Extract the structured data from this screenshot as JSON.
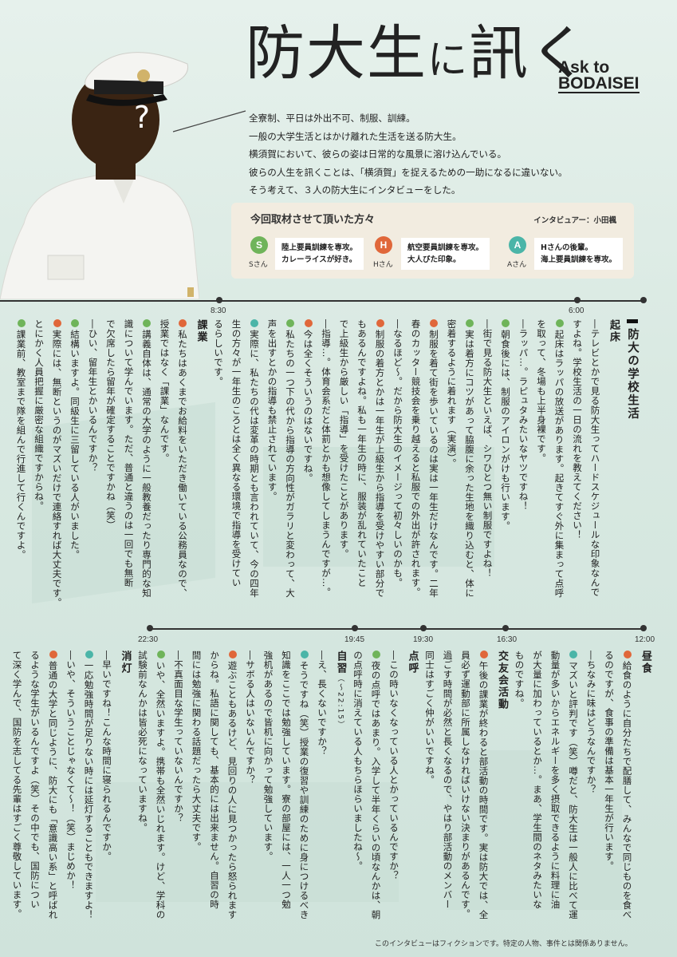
{
  "title": {
    "main1": "防大生",
    "small": "に",
    "main2": "訊く"
  },
  "subtitle": {
    "line1": "Ask to",
    "line2": "BODAISEI"
  },
  "figure_mark": "?",
  "intro": [
    "全寮制、平日は外出不可、制服、訓練。",
    "一般の大学生活とはかけ離れた生活を送る防大生。",
    "横須賀において、彼らの姿は日常的な風景に溶け込んでいる。",
    "彼らの人生を訊くことは、「横須賀」を捉えるための一助になるに違いない。",
    "そう考えて、３人の防大生にインタビューをした。"
  ],
  "interviewees": {
    "title": "今回取材させて頂いた方々",
    "interviewer": "インタビュアー：小田楓",
    "people": [
      {
        "letter": "S",
        "name": "Sさん",
        "desc1": "陸上要員訓練を専攻。",
        "desc2": "カレーライスが好き。",
        "color": "#6fb45a"
      },
      {
        "letter": "H",
        "name": "Hさん",
        "desc1": "航空要員訓練を専攻。",
        "desc2": "大人びた印象。",
        "color": "#e0673a"
      },
      {
        "letter": "A",
        "name": "Aさん",
        "desc1": "Hさんの後輩。",
        "desc2": "海上要員訓練を専攻。",
        "color": "#4bb5a8"
      }
    ]
  },
  "section_heading": "防大の学校生活",
  "timeline_top": {
    "times": [
      "6:00",
      "8:30"
    ]
  },
  "timeline_bottom": {
    "times": [
      "12:00",
      "16:30",
      "19:30",
      "19:45",
      "22:30"
    ]
  },
  "top_text": [
    {
      "type": "sec",
      "text": "起床"
    },
    {
      "text": "―テレビとかで見る防大生ってハードスケジュールな印象なんで"
    },
    {
      "text": "すよね。学校生活の一日の流れを教えてください！"
    },
    {
      "mk": "S",
      "text": "起床はラッパの放送があります。起きてすぐ外に集まって点呼"
    },
    {
      "text": "を取って、冬場も上半身裸です。"
    },
    {
      "text": "―ラッパ…。ラピュタみたいなヤツですね！"
    },
    {
      "mk": "S",
      "text": "朝食後には、制服のアイロンがけも行います。"
    },
    {
      "text": "―街で見る防大生といえば、シワひとつ無い制服ですよね！"
    },
    {
      "mk": "S",
      "text": "実は着方にコツがあって脇腹に余った生地を織り込むと、体に"
    },
    {
      "text": "密着するように着れます（実演）。"
    },
    {
      "mk": "H",
      "text": "制服を着て街を歩いているのは実は一年生だけなんです。二年"
    },
    {
      "text": "春のカッター競技会を乗り越えると私服での外出が許されます。"
    },
    {
      "text": "―なるほど〜。だから防大生のイメージって初々しいのかも。"
    },
    {
      "mk": "H",
      "text": "制服の着方とかは一年生が上級生から指導を受けやすい部分で"
    },
    {
      "text": "もあるんですよね。私も一年生の時に、服装が乱れていたこと"
    },
    {
      "text": "で上級生から厳しい「指導」を受けたことがあります。"
    },
    {
      "text": "―指導…。体育会系だと体罰とかも想像してしまうんですが…。"
    },
    {
      "mk": "H",
      "text": "今は全くそういうのはないですね。"
    },
    {
      "mk": "S",
      "text": "私たちの一つ下の代から指導の方向性がガラリと変わって、大"
    },
    {
      "text": "声を出すとかの指導も禁止されています。"
    },
    {
      "mk": "A",
      "text": "実際に、私たちの代は変革の時期とも言われていて、今の四年"
    },
    {
      "text": "生の方々が一年生のころとは全く異なる環境で指導を受けてい"
    },
    {
      "text": "るらしいです。"
    },
    {
      "type": "sec",
      "text": "課業"
    },
    {
      "mk": "H",
      "text": "私たちはあくまでお給料をいただき働いている公務員なので、"
    },
    {
      "text": "授業ではなく「課業」なんです。"
    },
    {
      "mk": "S",
      "text": "講義自体は、通常の大学のように一般教養だったり専門的な知"
    },
    {
      "text": "識について学んでいます。ただ、普通と違うのは一回でも無断"
    },
    {
      "text": "で欠席したら留年が確定することですかね（笑）"
    },
    {
      "text": "―ひい、留年生とかいるんですか？"
    },
    {
      "mk": "S",
      "text": "結構いますよ。同級生に三留している人がいました。"
    },
    {
      "mk": "H",
      "text": "実際には、無断というのがマズいだけで連絡すれば大丈夫です。"
    },
    {
      "text": "とにかく人員把握に厳密な組織ですからね。"
    },
    {
      "mk": "S",
      "text": "課業前、教室まで隊を組んで行進して行くんですよ。"
    }
  ],
  "bottom_text": [
    {
      "type": "sec",
      "text": "昼食"
    },
    {
      "mk": "H",
      "text": "給食のように自分たちで配膳して、みんなで同じものを食べ"
    },
    {
      "text": "るのですが、食事の準備は基本一年生が行います。"
    },
    {
      "text": "―ちなみに味はどうなんですか？"
    },
    {
      "mk": "A",
      "text": "マズいと評判です（笑）噂だと、防大生は一般人に比べて運"
    },
    {
      "text": "動量が多いからエネルギーを多く摂取できるように料理に油"
    },
    {
      "text": "が大量に加わっているとか…。まあ、学生間のネタみたいな"
    },
    {
      "text": "ものですね。"
    },
    {
      "type": "sec",
      "text": "交友会活動"
    },
    {
      "mk": "H",
      "text": "午後の課業が終わると部活動の時間です。実は防大では、全"
    },
    {
      "text": "員必ず運動部に所属しなければいけない決まりがあるんです。"
    },
    {
      "text": "過ごす時間が必然と長くなるので、やはり部活動のメンバー"
    },
    {
      "text": "同士はすごく仲がいいですね。"
    },
    {
      "type": "sec",
      "text": "点呼"
    },
    {
      "text": "―この時いなくなっている人とかっているんですか？"
    },
    {
      "mk": "S",
      "text": "夜の点呼ではあまり。入学して半年くらいの頃なんかは、朝"
    },
    {
      "text": "の点呼時に消えている人もちらほらいましたね〜。"
    },
    {
      "type": "sec",
      "text": "自習",
      "note": "（〜22:15）"
    },
    {
      "text": "―え、長くないですか？"
    },
    {
      "mk": "A",
      "text": "そうですね（笑）授業の復習や訓練のために身につけるべき"
    },
    {
      "text": "知識をここでは勉強しています。寮の部屋には、一人一つ勉"
    },
    {
      "text": "強机があるので皆机に向かって勉強しています。"
    },
    {
      "text": "―サボる人はいないんですか？"
    },
    {
      "mk": "H",
      "text": "遊ぶこともあるけど、見回りの人に見つかったら怒られます"
    },
    {
      "text": "からね。私語に関しても、基本的には出来ません。自習の時"
    },
    {
      "text": "間には勉強に関わる話題だったら大丈夫です。"
    },
    {
      "text": "―不真面目な学生っていないんですか？"
    },
    {
      "mk": "S",
      "text": "いや、全然いますよ。携帯も全然いじれます。けど、学科の"
    },
    {
      "text": "試験前なんかは皆必死になっていますね。"
    },
    {
      "type": "sec",
      "text": "消灯"
    },
    {
      "text": "―早いですね！こんな時間に寝られるんですか。"
    },
    {
      "mk": "A",
      "text": "一応勉強時間が足りない時には延灯することもできますよ！"
    },
    {
      "text": "―いや、そういうことじゃなくて〜！（笑）まじめか！"
    },
    {
      "mk": "H",
      "text": "普通の大学と同じように、防大にも「意識高い系」と呼ばれ"
    },
    {
      "text": "るような学生がいるんですよ（笑）その中でも、国防につい"
    },
    {
      "text": "て深く学んで、国防を志してる先輩はすごく尊敬しています。"
    }
  ],
  "footnote": "このインタビューはフィクションです。特定の人物、事件とは関係ありません。"
}
